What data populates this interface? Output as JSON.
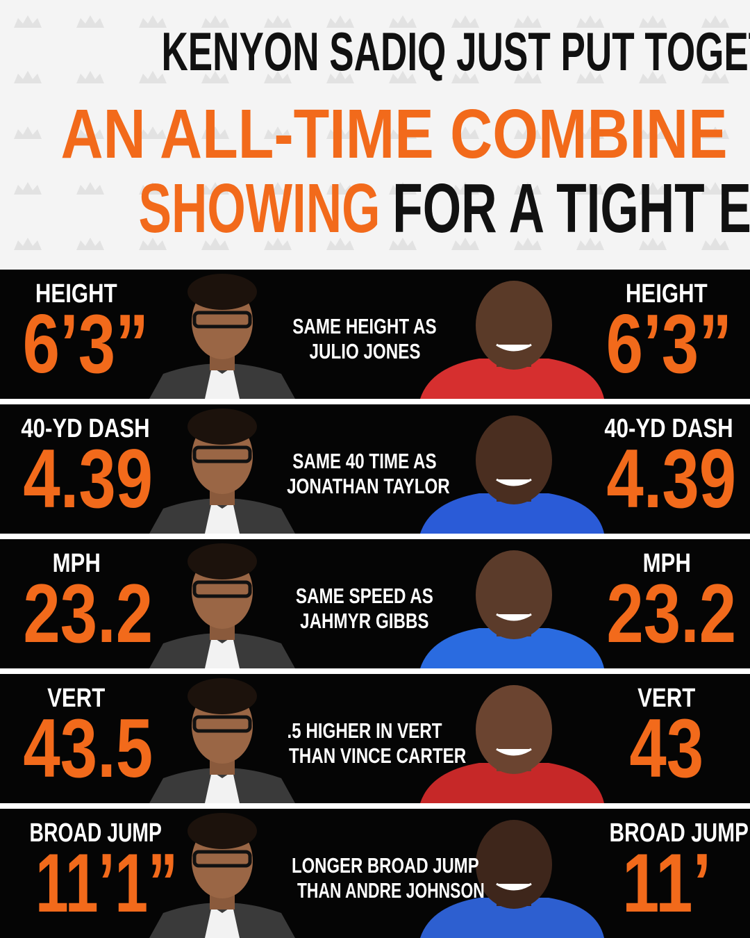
{
  "header": {
    "title_lines": [
      [
        {
          "text": "KENYON SADIQ JUST PUT TOGETHER",
          "color": "#111111"
        }
      ],
      [
        {
          "text": "AN ALL-TIME COMBINE",
          "color": "#f26a1b"
        }
      ],
      [
        {
          "text": "SHOWING",
          "color": "#f26a1b"
        },
        {
          "text": "FOR A TIGHT END",
          "color": "#111111"
        }
      ]
    ]
  },
  "rows": [
    {
      "left_label": "HEIGHT",
      "left_value": "6’3”",
      "comparison": [
        "SAME HEIGHT AS",
        "JULIO JONES"
      ],
      "right_label": "HEIGHT",
      "right_value": "6’3”"
    },
    {
      "left_label": "40-YD DASH",
      "left_value": "4.39",
      "comparison": [
        "SAME 40 TIME AS",
        "JONATHAN TAYLOR"
      ],
      "right_label": "40-YD DASH",
      "right_value": "4.39"
    },
    {
      "left_label": "MPH",
      "left_value": "23.2",
      "comparison": [
        "SAME SPEED AS",
        "JAHMYR GIBBS"
      ],
      "right_label": "MPH",
      "right_value": "23.2"
    },
    {
      "left_label": "VERT",
      "left_value": "43.5",
      "comparison": [
        ".5 HIGHER IN VERT",
        "THAN VINCE CARTER"
      ],
      "right_label": "VERT",
      "right_value": "43"
    },
    {
      "left_label": "BROAD JUMP",
      "left_value": "11’1”",
      "comparison": [
        "LONGER BROAD JUMP",
        "THAN ANDRE JOHNSON"
      ],
      "right_label": "BROAD JUMP",
      "right_value": "11’"
    }
  ]
}
